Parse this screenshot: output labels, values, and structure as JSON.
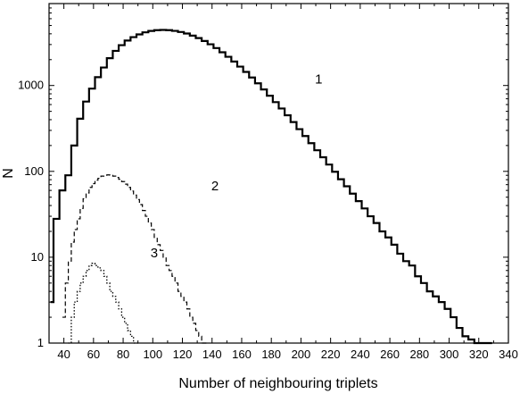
{
  "chart_data": {
    "type": "histogram-step",
    "xlabel": "Number of neighbouring triplets",
    "ylabel": "N",
    "xlim": [
      30,
      340
    ],
    "ylim": [
      1,
      9000
    ],
    "yscale": "log",
    "grid": false,
    "x_ticks": [
      40,
      60,
      80,
      100,
      120,
      140,
      160,
      180,
      200,
      220,
      240,
      260,
      280,
      300,
      320,
      340
    ],
    "x_tick_labels": [
      "40",
      "60",
      "80",
      "100",
      "120",
      "140",
      "160",
      "180",
      "200",
      "220",
      "240",
      "260",
      "280",
      "300",
      "320",
      "340"
    ],
    "y_ticks": [
      1,
      10,
      100,
      1000
    ],
    "y_tick_labels": [
      "1",
      "10",
      "100",
      "1000"
    ],
    "series": [
      {
        "label": "1",
        "label_at": [
          212,
          1050
        ],
        "style": "solid",
        "step": [
          [
            31,
            3
          ],
          [
            33,
            28
          ],
          [
            37,
            60
          ],
          [
            41,
            90
          ],
          [
            45,
            200
          ],
          [
            49,
            410
          ],
          [
            53,
            650
          ],
          [
            57,
            920
          ],
          [
            61,
            1250
          ],
          [
            65,
            1620
          ],
          [
            69,
            2080
          ],
          [
            73,
            2530
          ],
          [
            77,
            2950
          ],
          [
            81,
            3340
          ],
          [
            85,
            3660
          ],
          [
            89,
            3940
          ],
          [
            93,
            4160
          ],
          [
            97,
            4320
          ],
          [
            101,
            4410
          ],
          [
            105,
            4440
          ],
          [
            109,
            4410
          ],
          [
            113,
            4330
          ],
          [
            117,
            4200
          ],
          [
            121,
            4030
          ],
          [
            125,
            3810
          ],
          [
            129,
            3570
          ],
          [
            133,
            3300
          ],
          [
            137,
            3020
          ],
          [
            141,
            2730
          ],
          [
            145,
            2440
          ],
          [
            149,
            2160
          ],
          [
            153,
            1900
          ],
          [
            157,
            1660
          ],
          [
            161,
            1440
          ],
          [
            165,
            1240
          ],
          [
            169,
            1060
          ],
          [
            173,
            900
          ],
          [
            177,
            760
          ],
          [
            181,
            640
          ],
          [
            185,
            540
          ],
          [
            189,
            450
          ],
          [
            193,
            375
          ],
          [
            197,
            310
          ],
          [
            201,
            258
          ],
          [
            205,
            213
          ],
          [
            209,
            176
          ],
          [
            213,
            146
          ],
          [
            217,
            120
          ],
          [
            221,
            99
          ],
          [
            225,
            81
          ],
          [
            229,
            67
          ],
          [
            233,
            55
          ],
          [
            237,
            45
          ],
          [
            241,
            37
          ],
          [
            245,
            30
          ],
          [
            249,
            25
          ],
          [
            253,
            20
          ],
          [
            257,
            17
          ],
          [
            261,
            14
          ],
          [
            265,
            11
          ],
          [
            269,
            9
          ],
          [
            273,
            8
          ],
          [
            277,
            6
          ],
          [
            281,
            5
          ],
          [
            285,
            4
          ],
          [
            289,
            3.5
          ],
          [
            293,
            3
          ],
          [
            297,
            2.5
          ],
          [
            301,
            2
          ],
          [
            305,
            1.5
          ],
          [
            309,
            1.2
          ],
          [
            313,
            1.1
          ],
          [
            317,
            1
          ],
          [
            329,
            1
          ]
        ]
      },
      {
        "label": "2",
        "label_at": [
          142,
          60
        ],
        "style": "dashed",
        "step": [
          [
            39,
            2
          ],
          [
            41,
            5
          ],
          [
            43,
            9
          ],
          [
            45,
            15
          ],
          [
            47,
            21
          ],
          [
            49,
            28
          ],
          [
            51,
            37
          ],
          [
            53,
            48
          ],
          [
            55,
            56
          ],
          [
            57,
            65
          ],
          [
            59,
            72
          ],
          [
            61,
            79
          ],
          [
            63,
            83
          ],
          [
            65,
            88
          ],
          [
            67,
            90
          ],
          [
            69,
            91
          ],
          [
            71,
            90
          ],
          [
            73,
            88
          ],
          [
            75,
            85
          ],
          [
            77,
            81
          ],
          [
            79,
            76
          ],
          [
            81,
            71
          ],
          [
            83,
            65
          ],
          [
            85,
            59
          ],
          [
            87,
            53
          ],
          [
            89,
            47
          ],
          [
            91,
            41
          ],
          [
            93,
            35
          ],
          [
            95,
            30
          ],
          [
            97,
            25
          ],
          [
            99,
            21
          ],
          [
            101,
            17
          ],
          [
            103,
            14
          ],
          [
            105,
            12
          ],
          [
            107,
            10
          ],
          [
            109,
            8
          ],
          [
            111,
            7
          ],
          [
            113,
            6
          ],
          [
            115,
            5
          ],
          [
            117,
            4
          ],
          [
            119,
            3.5
          ],
          [
            121,
            3
          ],
          [
            123,
            2.5
          ],
          [
            125,
            2
          ],
          [
            127,
            1.7
          ],
          [
            129,
            1.4
          ],
          [
            131,
            1.2
          ],
          [
            133,
            1
          ],
          [
            137,
            1
          ]
        ]
      },
      {
        "label": "3",
        "label_at": [
          101,
          10
        ],
        "style": "dotted",
        "step": [
          [
            43,
            1
          ],
          [
            45,
            2
          ],
          [
            47,
            3
          ],
          [
            49,
            4
          ],
          [
            51,
            5
          ],
          [
            53,
            6
          ],
          [
            55,
            7
          ],
          [
            57,
            8
          ],
          [
            59,
            8.5
          ],
          [
            61,
            8
          ],
          [
            63,
            7.5
          ],
          [
            65,
            7
          ],
          [
            67,
            6
          ],
          [
            69,
            5
          ],
          [
            71,
            4
          ],
          [
            73,
            3.5
          ],
          [
            75,
            3
          ],
          [
            77,
            2.5
          ],
          [
            79,
            2
          ],
          [
            81,
            1.7
          ],
          [
            83,
            1.4
          ],
          [
            85,
            1.2
          ],
          [
            87,
            1
          ],
          [
            91,
            1
          ]
        ]
      }
    ]
  }
}
